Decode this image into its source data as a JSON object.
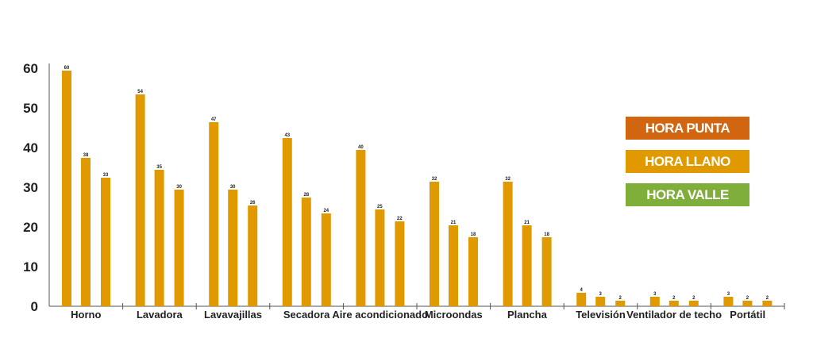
{
  "chart_data": {
    "type": "bar",
    "title": "",
    "xlabel": "",
    "ylabel": "",
    "ylim": [
      0,
      60
    ],
    "yticks": [
      0,
      10,
      20,
      30,
      40,
      50,
      60
    ],
    "categories": [
      "Horno",
      "Lavadora",
      "Lavavajillas",
      "Secadora",
      "Aire acondicionado",
      "Microondas",
      "Plancha",
      "Televisión",
      "Ventilador de techo",
      "Portátil"
    ],
    "series": [
      {
        "name": "HORA PUNTA",
        "color": "#E09A00",
        "values": [
          60,
          54,
          47,
          43,
          40,
          32,
          32,
          4,
          3,
          3
        ]
      },
      {
        "name": "HORA LLANO",
        "color": "#E09A00",
        "values": [
          38,
          35,
          30,
          28,
          25,
          21,
          21,
          3,
          2,
          2
        ]
      },
      {
        "name": "HORA VALLE",
        "color": "#E09A00",
        "values": [
          33,
          30,
          26,
          24,
          22,
          18,
          18,
          2,
          2,
          2
        ]
      }
    ],
    "legend": {
      "placement": "right",
      "items": [
        {
          "label": "HORA PUNTA",
          "color": "#D2650F"
        },
        {
          "label": "HORA LLANO",
          "color": "#E09A00"
        },
        {
          "label": "HORA VALLE",
          "color": "#7FAF3A"
        }
      ]
    }
  }
}
